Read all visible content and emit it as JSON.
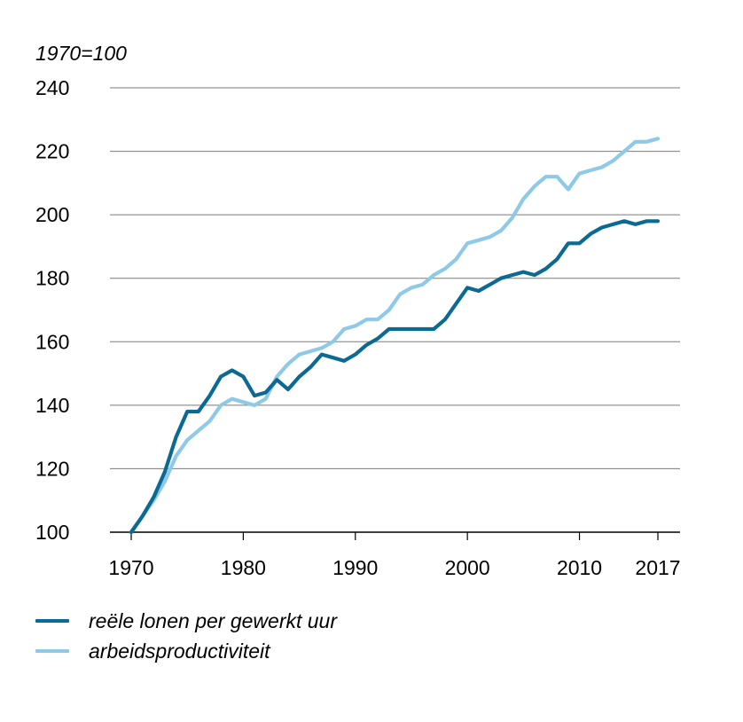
{
  "chart_data": {
    "type": "line",
    "unit_label": "1970=100",
    "xlabel": "",
    "ylabel": "",
    "ylim": [
      100,
      240
    ],
    "xlim": [
      1970,
      2017
    ],
    "y_ticks": [
      100,
      120,
      140,
      160,
      180,
      200,
      220,
      240
    ],
    "x_ticks": [
      1970,
      1980,
      1990,
      2000,
      2010,
      2017
    ],
    "grid": true,
    "legend_position": "bottom-left",
    "x": [
      1970,
      1971,
      1972,
      1973,
      1974,
      1975,
      1976,
      1977,
      1978,
      1979,
      1980,
      1981,
      1982,
      1983,
      1984,
      1985,
      1986,
      1987,
      1988,
      1989,
      1990,
      1991,
      1992,
      1993,
      1994,
      1995,
      1996,
      1997,
      1998,
      1999,
      2000,
      2001,
      2002,
      2003,
      2004,
      2005,
      2006,
      2007,
      2008,
      2009,
      2010,
      2011,
      2012,
      2013,
      2014,
      2015,
      2016,
      2017
    ],
    "series": [
      {
        "name": "reële lonen per gewerkt uur",
        "color": "#0b6a94",
        "values": [
          100,
          105,
          111,
          119,
          130,
          138,
          138,
          143,
          149,
          151,
          149,
          143,
          144,
          148,
          145,
          149,
          152,
          156,
          155,
          154,
          156,
          159,
          161,
          164,
          164,
          164,
          164,
          164,
          167,
          172,
          177,
          176,
          178,
          180,
          181,
          182,
          181,
          183,
          186,
          191,
          191,
          194,
          196,
          197,
          198,
          197,
          198,
          198
        ]
      },
      {
        "name": "arbeidsproductiviteit",
        "color": "#8ecae8",
        "values": [
          100,
          105,
          110,
          116,
          124,
          129,
          132,
          135,
          140,
          142,
          141,
          140,
          142,
          149,
          153,
          156,
          157,
          158,
          160,
          164,
          165,
          167,
          167,
          170,
          175,
          177,
          178,
          181,
          183,
          186,
          191,
          192,
          193,
          195,
          199,
          205,
          209,
          212,
          212,
          208,
          213,
          214,
          215,
          217,
          220,
          223,
          223,
          224
        ]
      }
    ]
  }
}
